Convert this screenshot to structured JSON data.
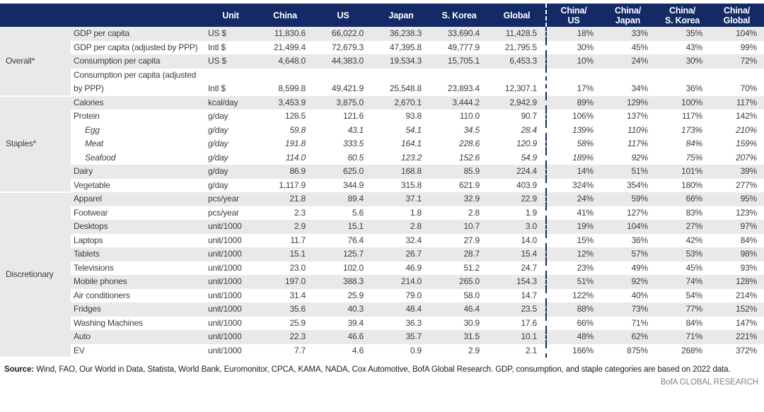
{
  "colors": {
    "header_bg": "#132A66",
    "stripe": "#E9E9E9",
    "divider_dash": "#132A66",
    "body_text": "#3d3d3d",
    "brand_text": "#7d828c"
  },
  "table": {
    "header": {
      "unit": "Unit",
      "countries": [
        "China",
        "US",
        "Japan",
        "S. Korea",
        "Global"
      ],
      "ratios": [
        "China/\nUS",
        "China/\nJapan",
        "China/\nS. Korea",
        "China/\nGlobal"
      ]
    },
    "sections": [
      {
        "label": "Overall*",
        "rows": [
          {
            "label": "GDP per capita",
            "unit": "US $",
            "values": [
              "11,830.6",
              "66,022.0",
              "36,238.3",
              "33,690.4",
              "11,428.5"
            ],
            "ratios": [
              "18%",
              "33%",
              "35%",
              "104%"
            ],
            "shaded": true,
            "italic": false
          },
          {
            "label": "GDP per capita (adjusted by PPP)",
            "unit": "Intl $",
            "values": [
              "21,499.4",
              "72,679.3",
              "47,395.8",
              "49,777.9",
              "21,795.5"
            ],
            "ratios": [
              "30%",
              "45%",
              "43%",
              "99%"
            ],
            "shaded": false,
            "italic": false
          },
          {
            "label": "Consumption per capita",
            "unit": "US $",
            "values": [
              "4,648.0",
              "44,383.0",
              "19,534.3",
              "15,705.1",
              "6,453.3"
            ],
            "ratios": [
              "10%",
              "24%",
              "30%",
              "72%"
            ],
            "shaded": true,
            "italic": false
          },
          {
            "label": "Consumption per capita (adjusted by PPP)",
            "unit": "Intl $",
            "values": [
              "8,599.8",
              "49,421.9",
              "25,548.8",
              "23,893.4",
              "12,307.1"
            ],
            "ratios": [
              "17%",
              "34%",
              "36%",
              "70%"
            ],
            "shaded": false,
            "italic": false
          }
        ]
      },
      {
        "label": "Staples*",
        "rows": [
          {
            "label": "Calories",
            "unit": "kcal/day",
            "values": [
              "3,453.9",
              "3,875.0",
              "2,670.1",
              "3,444.2",
              "2,942.9"
            ],
            "ratios": [
              "89%",
              "129%",
              "100%",
              "117%"
            ],
            "shaded": true,
            "italic": false
          },
          {
            "label": "Protein",
            "unit": "g/day",
            "values": [
              "128.5",
              "121.6",
              "93.8",
              "110.0",
              "90.7"
            ],
            "ratios": [
              "106%",
              "137%",
              "117%",
              "142%"
            ],
            "shaded": false,
            "italic": false
          },
          {
            "label": "Egg",
            "unit": "g/day",
            "values": [
              "59.8",
              "43.1",
              "54.1",
              "34.5",
              "28.4"
            ],
            "ratios": [
              "139%",
              "110%",
              "173%",
              "210%"
            ],
            "shaded": false,
            "italic": true
          },
          {
            "label": "Meat",
            "unit": "g/day",
            "values": [
              "191.8",
              "333.5",
              "164.1",
              "228.6",
              "120.9"
            ],
            "ratios": [
              "58%",
              "117%",
              "84%",
              "159%"
            ],
            "shaded": false,
            "italic": true
          },
          {
            "label": "Seafood",
            "unit": "g/day",
            "values": [
              "114.0",
              "60.5",
              "123.2",
              "152.6",
              "54.9"
            ],
            "ratios": [
              "189%",
              "92%",
              "75%",
              "207%"
            ],
            "shaded": false,
            "italic": true
          },
          {
            "label": "Dairy",
            "unit": "g/day",
            "values": [
              "86.9",
              "625.0",
              "168.8",
              "85.9",
              "224.4"
            ],
            "ratios": [
              "14%",
              "51%",
              "101%",
              "39%"
            ],
            "shaded": true,
            "italic": false
          },
          {
            "label": "Vegetable",
            "unit": "g/day",
            "values": [
              "1,117.9",
              "344.9",
              "315.8",
              "621.9",
              "403.9"
            ],
            "ratios": [
              "324%",
              "354%",
              "180%",
              "277%"
            ],
            "shaded": false,
            "italic": false
          }
        ]
      },
      {
        "label": "Discretionary",
        "rows": [
          {
            "label": "Apparel",
            "unit": "pcs/year",
            "values": [
              "21.8",
              "89.4",
              "37.1",
              "32.9",
              "22.9"
            ],
            "ratios": [
              "24%",
              "59%",
              "66%",
              "95%"
            ],
            "shaded": true,
            "italic": false
          },
          {
            "label": "Footwear",
            "unit": "pcs/year",
            "values": [
              "2.3",
              "5.6",
              "1.8",
              "2.8",
              "1.9"
            ],
            "ratios": [
              "41%",
              "127%",
              "83%",
              "123%"
            ],
            "shaded": false,
            "italic": false
          },
          {
            "label": "Desktops",
            "unit": "unit/1000",
            "values": [
              "2.9",
              "15.1",
              "2.8",
              "10.7",
              "3.0"
            ],
            "ratios": [
              "19%",
              "104%",
              "27%",
              "97%"
            ],
            "shaded": true,
            "italic": false
          },
          {
            "label": "Laptops",
            "unit": "unit/1000",
            "values": [
              "11.7",
              "76.4",
              "32.4",
              "27.9",
              "14.0"
            ],
            "ratios": [
              "15%",
              "36%",
              "42%",
              "84%"
            ],
            "shaded": false,
            "italic": false
          },
          {
            "label": "Tablets",
            "unit": "unit/1000",
            "values": [
              "15.1",
              "125.7",
              "26.7",
              "28.7",
              "15.4"
            ],
            "ratios": [
              "12%",
              "57%",
              "53%",
              "98%"
            ],
            "shaded": true,
            "italic": false
          },
          {
            "label": "Televisions",
            "unit": "unit/1000",
            "values": [
              "23.0",
              "102.0",
              "46.9",
              "51.2",
              "24.7"
            ],
            "ratios": [
              "23%",
              "49%",
              "45%",
              "93%"
            ],
            "shaded": false,
            "italic": false
          },
          {
            "label": "Mobile phones",
            "unit": "unit/1000",
            "values": [
              "197.0",
              "388.3",
              "214.0",
              "265.0",
              "154.3"
            ],
            "ratios": [
              "51%",
              "92%",
              "74%",
              "128%"
            ],
            "shaded": true,
            "italic": false
          },
          {
            "label": "Air conditioners",
            "unit": "unit/1000",
            "values": [
              "31.4",
              "25.9",
              "79.0",
              "58.0",
              "14.7"
            ],
            "ratios": [
              "122%",
              "40%",
              "54%",
              "214%"
            ],
            "shaded": false,
            "italic": false
          },
          {
            "label": "Fridges",
            "unit": "unit/1000",
            "values": [
              "35.6",
              "40.3",
              "48.4",
              "46.4",
              "23.5"
            ],
            "ratios": [
              "88%",
              "73%",
              "77%",
              "152%"
            ],
            "shaded": true,
            "italic": false
          },
          {
            "label": "Washing Machines",
            "unit": "unit/1000",
            "values": [
              "25.9",
              "39.4",
              "36.3",
              "30.9",
              "17.6"
            ],
            "ratios": [
              "66%",
              "71%",
              "84%",
              "147%"
            ],
            "shaded": false,
            "italic": false
          },
          {
            "label": "Auto",
            "unit": "unit/1000",
            "values": [
              "22.3",
              "46.6",
              "35.7",
              "31.5",
              "10.1"
            ],
            "ratios": [
              "48%",
              "62%",
              "71%",
              "221%"
            ],
            "shaded": true,
            "italic": false
          },
          {
            "label": "EV",
            "unit": "unit/1000",
            "values": [
              "7.7",
              "4.6",
              "0.9",
              "2.9",
              "2.1"
            ],
            "ratios": [
              "166%",
              "875%",
              "268%",
              "372%"
            ],
            "shaded": false,
            "italic": false
          }
        ]
      }
    ]
  },
  "footer": {
    "source_label": "Source:",
    "source_text": " Wind, FAO, Our World in Data, Statista, World Bank, Euromonitor, CPCA, KAMA, NADA, Cox Automotive, BofA Global Research. GDP, consumption, and staple categories are based on 2022 data.",
    "brand": "BofA GLOBAL RESEARCH"
  }
}
